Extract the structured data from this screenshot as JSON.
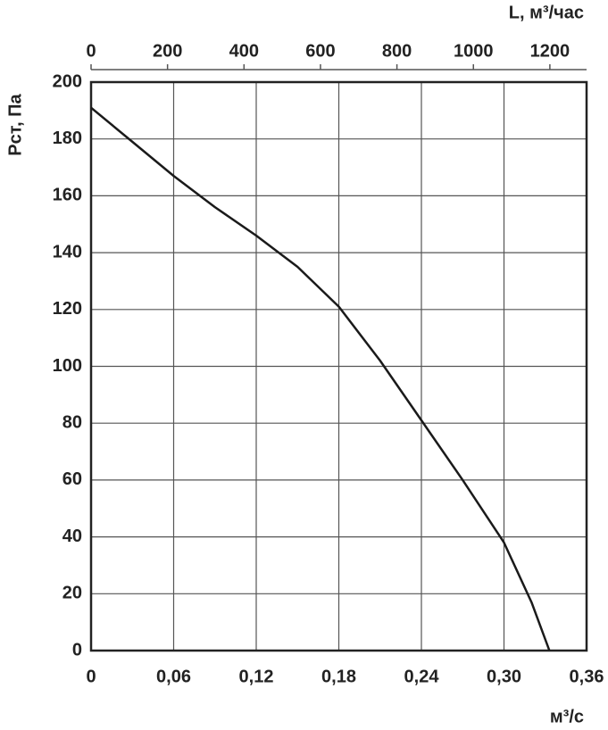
{
  "chart_data": {
    "type": "line",
    "y_label": "Pст, Па",
    "x_label": "м³/с",
    "x2_label": "L, м³/час",
    "x": [
      0,
      0.03,
      0.06,
      0.09,
      0.12,
      0.15,
      0.18,
      0.21,
      0.24,
      0.27,
      0.3,
      0.32,
      0.333
    ],
    "values": [
      191,
      179,
      167,
      156,
      146,
      135,
      121,
      102,
      81,
      60,
      38,
      17,
      0
    ],
    "color": "#1a1a1a",
    "xlim": [
      0,
      0.36
    ],
    "xticks": [
      0,
      {
        "value": 0.06,
        "label": "0,06"
      },
      {
        "value": 0.12,
        "label": "0,12"
      },
      {
        "value": 0.18,
        "label": "0,18"
      },
      {
        "value": 0.24,
        "label": "0,24"
      },
      {
        "value": 0.3,
        "label": "0,30"
      },
      {
        "value": 0.36,
        "label": "0,36"
      }
    ],
    "x2lim": [
      0,
      1296
    ],
    "x2ticks": [
      0,
      200,
      400,
      600,
      800,
      1000,
      1200
    ],
    "ylim": [
      0,
      200
    ],
    "yticks": [
      0,
      20,
      40,
      60,
      80,
      100,
      120,
      140,
      160,
      180,
      200
    ],
    "grid": true
  }
}
